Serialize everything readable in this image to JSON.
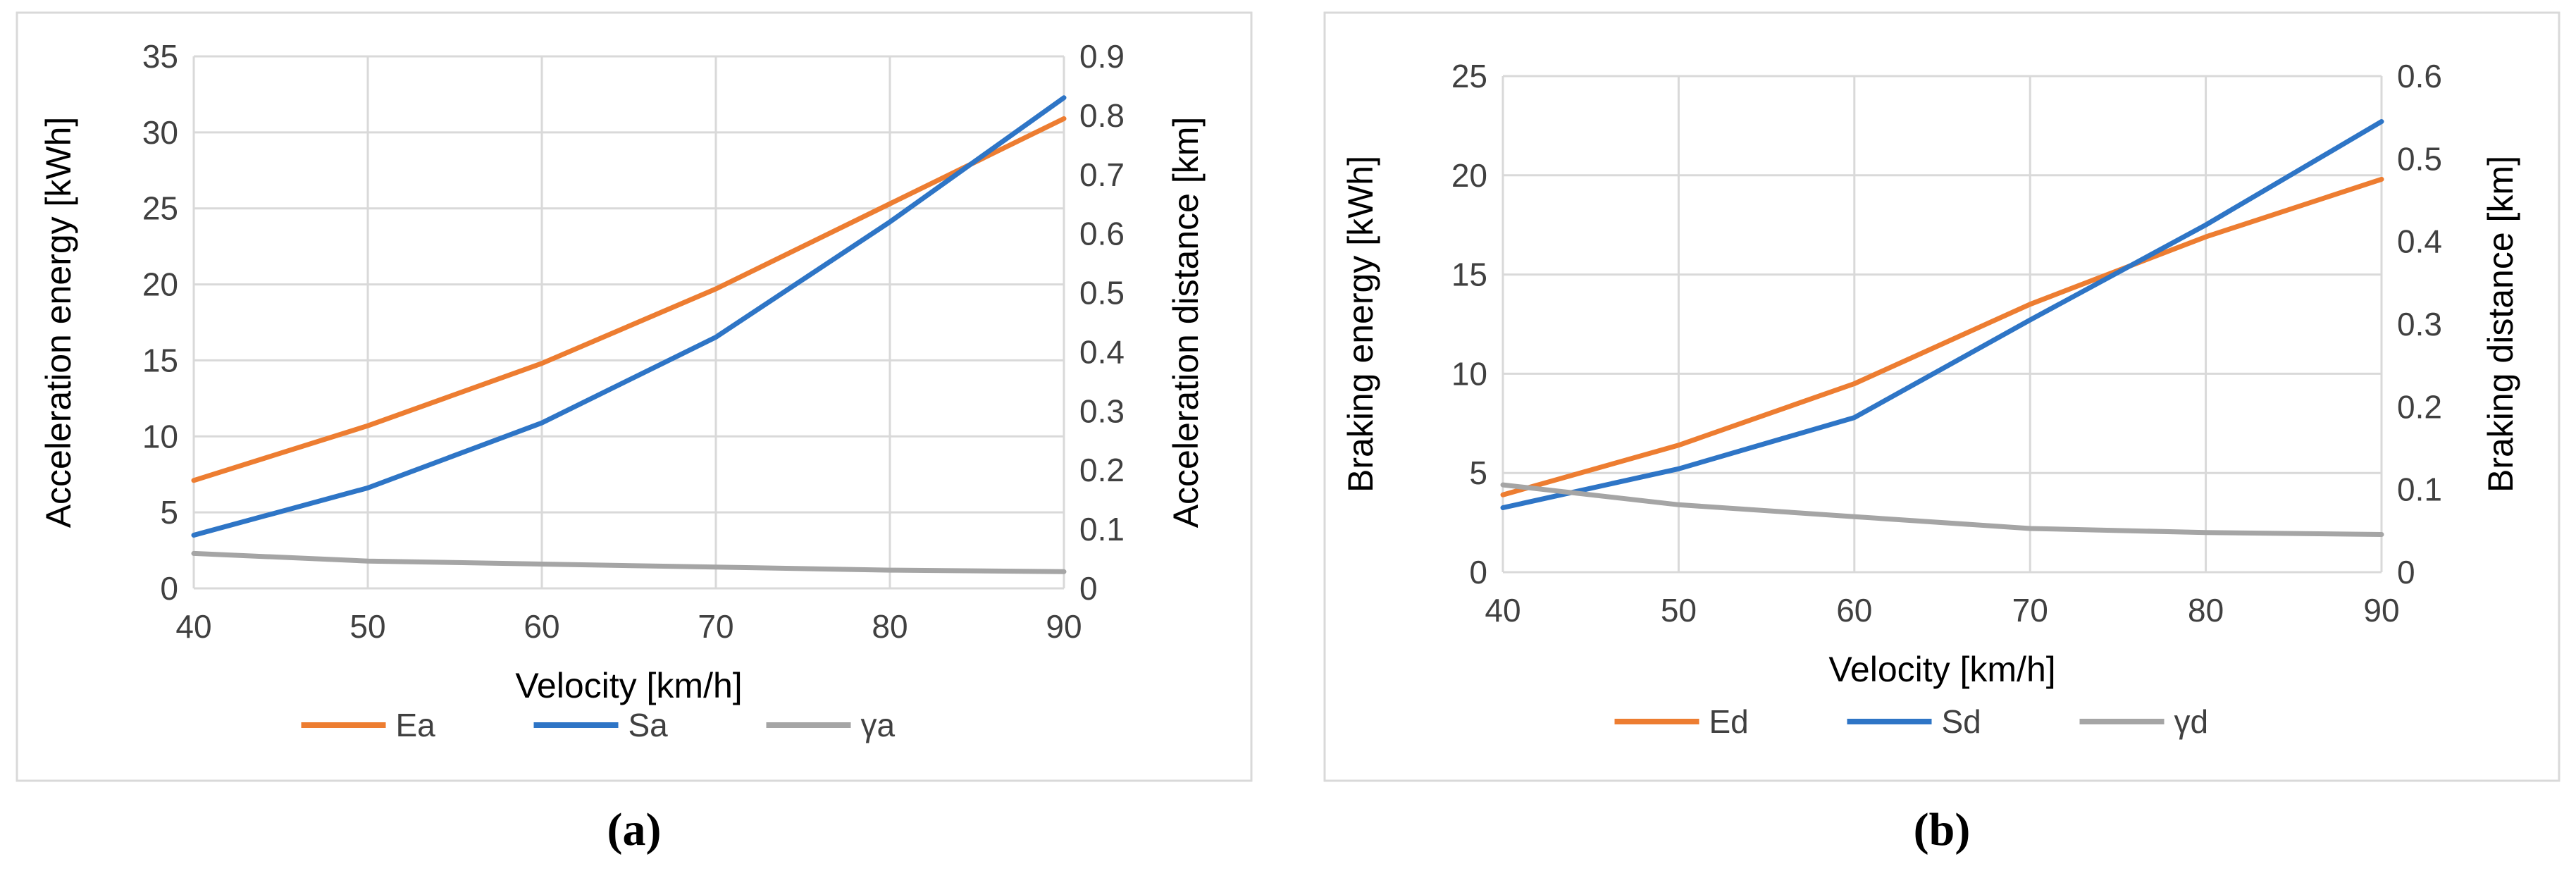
{
  "chart_data": [
    {
      "type": "line",
      "panel": "a",
      "caption": "(a)",
      "xlabel": "Velocity [km/h]",
      "ylabel_left": "Acceleration energy [kWh]",
      "ylabel_right": "Acceleration distance [km]",
      "x": [
        40,
        50,
        60,
        70,
        80,
        90
      ],
      "xlim": [
        40,
        90
      ],
      "x_ticks": [
        "40",
        "50",
        "60",
        "70",
        "80",
        "90"
      ],
      "ylim_left": [
        0,
        35
      ],
      "y_ticks_left": [
        "0",
        "5",
        "10",
        "15",
        "20",
        "25",
        "30",
        "35"
      ],
      "ylim_right": [
        0,
        0.9
      ],
      "y_ticks_right": [
        "0",
        "0.1",
        "0.2",
        "0.3",
        "0.4",
        "0.5",
        "0.6",
        "0.7",
        "0.8",
        "0.9"
      ],
      "grid": true,
      "legend_position": "bottom",
      "series": [
        {
          "name": "Ea",
          "axis": "left",
          "color": "#ED7D31",
          "values": [
            7.1,
            10.7,
            14.8,
            19.7,
            25.3,
            30.9
          ]
        },
        {
          "name": "Sa",
          "axis": "right",
          "color": "#2E75C6",
          "values": [
            0.09,
            0.17,
            0.28,
            0.425,
            0.62,
            0.83
          ]
        },
        {
          "name": "γa",
          "axis": "left",
          "color": "#A5A5A5",
          "values": [
            2.3,
            1.8,
            1.6,
            1.4,
            1.2,
            1.1
          ]
        }
      ]
    },
    {
      "type": "line",
      "panel": "b",
      "caption": "(b)",
      "xlabel": "Velocity [km/h]",
      "ylabel_left": "Braking energy [kWh]",
      "ylabel_right": "Braking distance [km]",
      "x": [
        40,
        50,
        60,
        70,
        80,
        90
      ],
      "xlim": [
        40,
        90
      ],
      "x_ticks": [
        "40",
        "50",
        "60",
        "70",
        "80",
        "90"
      ],
      "ylim_left": [
        0,
        25
      ],
      "y_ticks_left": [
        "0",
        "5",
        "10",
        "15",
        "20",
        "25"
      ],
      "ylim_right": [
        0,
        0.6
      ],
      "y_ticks_right": [
        "0",
        "0.1",
        "0.2",
        "0.3",
        "0.4",
        "0.5",
        "0.6"
      ],
      "grid": true,
      "legend_position": "bottom",
      "series": [
        {
          "name": "Ed",
          "axis": "left",
          "color": "#ED7D31",
          "values": [
            3.9,
            6.4,
            9.5,
            13.5,
            16.9,
            19.8
          ]
        },
        {
          "name": "Sd",
          "axis": "right",
          "color": "#2E75C6",
          "values": [
            0.078,
            0.125,
            0.187,
            0.305,
            0.42,
            0.545
          ]
        },
        {
          "name": "γd",
          "axis": "left",
          "color": "#A5A5A5",
          "values": [
            4.4,
            3.4,
            2.8,
            2.2,
            2.0,
            1.9
          ]
        }
      ]
    }
  ]
}
